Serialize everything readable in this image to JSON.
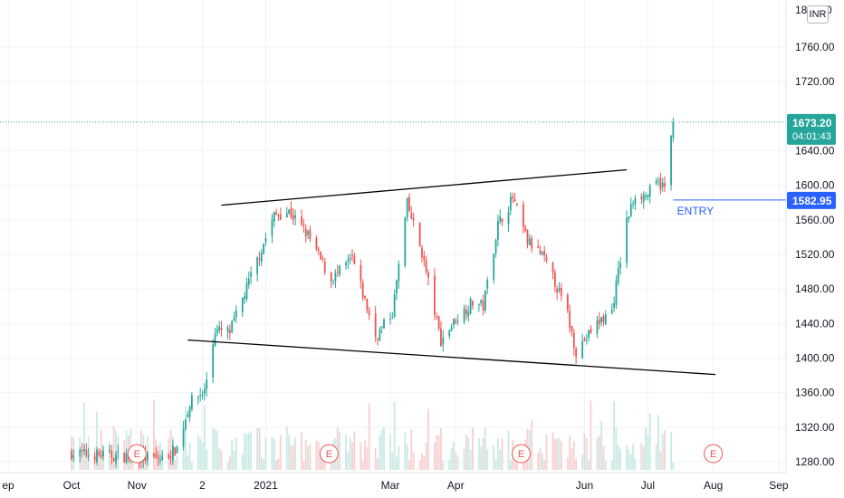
{
  "currency_badge": "INR",
  "chart_data": {
    "type": "candlestick",
    "y_axis": {
      "side": "right",
      "ticks": [
        "1280.00",
        "1320.00",
        "1360.00",
        "1400.00",
        "1440.00",
        "1480.00",
        "1520.00",
        "1560.00",
        "1600.00",
        "1640.00",
        "1720.00",
        "1760.00"
      ],
      "top_partial_label": "18",
      "top_partial_suffix": "0",
      "range": [
        1270,
        1815
      ]
    },
    "x_axis": {
      "ticks": [
        "ep",
        "Oct",
        "Nov",
        "2",
        "2021",
        "Mar",
        "Apr",
        "Jun",
        "Jul",
        "Aug",
        "Sep"
      ]
    },
    "last_price": {
      "value": "1673.20",
      "countdown": "04:01:43",
      "color": "#26a69a"
    },
    "entry_price": {
      "value": "1582.95",
      "color": "#2962ff"
    },
    "annotations": [
      {
        "text": "ENTRY",
        "color": "#2962ff"
      }
    ],
    "earnings_markers": [
      "E",
      "E",
      "E",
      "E"
    ],
    "trendlines": [
      {
        "name": "upper-resistance",
        "from": {
          "date": "2020-12-11",
          "price": 1577
        },
        "to": {
          "date": "2021-06-21",
          "price": 1618
        },
        "color": "#000000"
      },
      {
        "name": "lower-support",
        "from": {
          "date": "2020-11-25",
          "price": 1421
        },
        "to": {
          "date": "2021-08-02",
          "price": 1381
        },
        "color": "#000000"
      }
    ],
    "colors": {
      "up": "#26a69a",
      "down": "#ef5350",
      "grid": "#f0f3fa",
      "volume_up": "#c9e9e4",
      "volume_down": "#f7d0cf"
    }
  }
}
